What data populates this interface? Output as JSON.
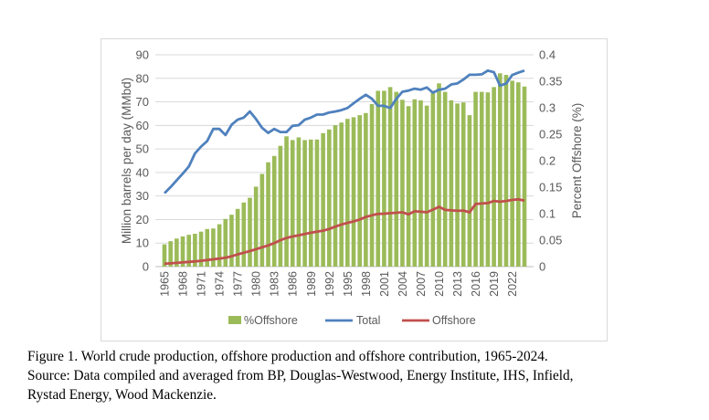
{
  "chart_data": {
    "type": "bar+line",
    "x": [
      1965,
      1966,
      1967,
      1968,
      1969,
      1970,
      1971,
      1972,
      1973,
      1974,
      1975,
      1976,
      1977,
      1978,
      1979,
      1980,
      1981,
      1982,
      1983,
      1984,
      1985,
      1986,
      1987,
      1988,
      1989,
      1990,
      1991,
      1992,
      1993,
      1994,
      1995,
      1996,
      1997,
      1998,
      1999,
      2000,
      2001,
      2002,
      2003,
      2004,
      2005,
      2006,
      2007,
      2008,
      2009,
      2010,
      2011,
      2012,
      2013,
      2014,
      2015,
      2016,
      2017,
      2018,
      2019,
      2020,
      2021,
      2022,
      2023,
      2024
    ],
    "x_tick_labels": [
      "1965",
      "1968",
      "1971",
      "1974",
      "1977",
      "1980",
      "1983",
      "1986",
      "1989",
      "1992",
      "1995",
      "1998",
      "2001",
      "2004",
      "2007",
      "2010",
      "2013",
      "2016",
      "2019",
      "2022"
    ],
    "ylabel": "Million barrels per day (MMbd)",
    "y2label": "Percent  Offshore (%)",
    "ylim": [
      0,
      90
    ],
    "y_ticks": [
      "0",
      "10",
      "20",
      "30",
      "40",
      "50",
      "60",
      "70",
      "80",
      "90"
    ],
    "y2lim": [
      0,
      0.4
    ],
    "y2_ticks": [
      "0",
      "0.05",
      "0.1",
      "0.15",
      "0.2",
      "0.25",
      "0.3",
      "0.35",
      "0.4"
    ],
    "grid": true,
    "legend_position": "bottom",
    "series": [
      {
        "name": "%Offshore",
        "type": "bar",
        "axis": "right",
        "color": "#9bbb59",
        "values": [
          0.042,
          0.048,
          0.053,
          0.057,
          0.06,
          0.062,
          0.066,
          0.071,
          0.072,
          0.08,
          0.09,
          0.098,
          0.109,
          0.121,
          0.13,
          0.151,
          0.175,
          0.197,
          0.209,
          0.228,
          0.246,
          0.239,
          0.244,
          0.239,
          0.24,
          0.24,
          0.252,
          0.259,
          0.267,
          0.272,
          0.279,
          0.282,
          0.286,
          0.29,
          0.307,
          0.332,
          0.332,
          0.339,
          0.33,
          0.315,
          0.303,
          0.316,
          0.314,
          0.304,
          0.332,
          0.346,
          0.33,
          0.314,
          0.308,
          0.31,
          0.286,
          0.33,
          0.33,
          0.329,
          0.339,
          0.365,
          0.362,
          0.351,
          0.348,
          0.34
        ]
      },
      {
        "name": "Total",
        "type": "line",
        "axis": "left",
        "color": "#4f81bd",
        "values": [
          31.2,
          33.8,
          36.7,
          39.5,
          42.5,
          48.1,
          51.0,
          53.3,
          58.5,
          58.5,
          55.9,
          60.3,
          62.4,
          63.3,
          65.9,
          62.7,
          59.0,
          56.8,
          58.5,
          57.2,
          57.2,
          59.8,
          60.1,
          62.4,
          63.3,
          64.6,
          64.6,
          65.5,
          65.9,
          66.5,
          67.4,
          69.4,
          71.3,
          73.0,
          71.3,
          68.3,
          68.3,
          67.4,
          71.3,
          74.3,
          74.8,
          75.6,
          75.2,
          76.1,
          73.9,
          75.2,
          75.6,
          77.4,
          77.8,
          79.5,
          81.5,
          81.5,
          81.7,
          83.3,
          82.6,
          76.9,
          77.8,
          81.4,
          82.4,
          83.3
        ]
      },
      {
        "name": "Offshore",
        "type": "line",
        "axis": "left",
        "color": "#c0504d",
        "values": [
          1.2,
          1.4,
          1.6,
          1.8,
          2.0,
          2.2,
          2.5,
          2.8,
          3.1,
          3.4,
          3.8,
          4.4,
          5.2,
          5.9,
          6.6,
          7.4,
          8.2,
          9.0,
          10.0,
          11.2,
          12.2,
          12.8,
          13.3,
          13.9,
          14.4,
          14.8,
          15.3,
          16.0,
          17.0,
          17.9,
          18.6,
          19.2,
          20.0,
          21.1,
          21.8,
          22.4,
          22.5,
          22.7,
          22.9,
          23.1,
          22.2,
          23.5,
          23.3,
          23.1,
          24.2,
          25.4,
          24.1,
          23.9,
          23.7,
          23.8,
          23.1,
          26.6,
          26.8,
          27.0,
          27.9,
          27.6,
          27.9,
          28.3,
          28.6,
          28.0
        ]
      }
    ]
  },
  "caption": {
    "line1": "Figure 1. World crude production, offshore production and offshore contribution, 1965-2024.",
    "line2": "Source: Data compiled and averaged from BP, Douglas-Westwood, Energy Institute, IHS, Infield,",
    "line3": "Rystad Energy, Wood Mackenzie."
  }
}
